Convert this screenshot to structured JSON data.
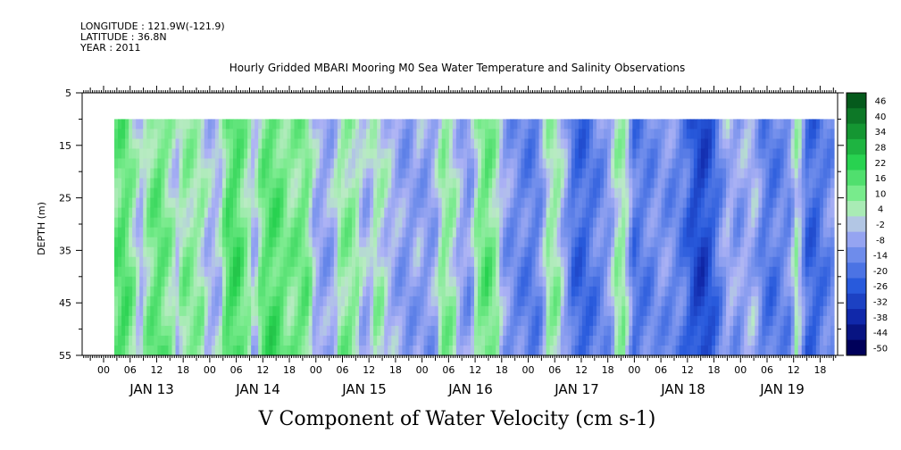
{
  "meta": {
    "longitude": "LONGITUDE : 121.9W(-121.9)",
    "latitude": "LATITUDE : 36.8N",
    "year": "YEAR : 2011"
  },
  "chart_data": {
    "type": "heatmap",
    "title": "Hourly Gridded MBARI Mooring M0 Sea Water Temperature and Salinity Observations",
    "subtitle": "V Component of Water Velocity (cm s-1)",
    "ylabel": "DEPTH (m)",
    "y_ticks": [
      "5",
      "15",
      "25",
      "35",
      "45",
      "55"
    ],
    "ylim": [
      5,
      55
    ],
    "y_inverted": true,
    "data_depth_range": [
      10,
      55
    ],
    "x_hour_ticks": [
      "00",
      "06",
      "12",
      "18",
      "00",
      "06",
      "12",
      "18",
      "00",
      "06",
      "12",
      "18",
      "00",
      "06",
      "12",
      "18",
      "00",
      "06",
      "12",
      "18",
      "00",
      "06",
      "12",
      "18",
      "00",
      "06",
      "12",
      "18",
      "00",
      "06",
      "12",
      "18"
    ],
    "x_day_labels": [
      "JAN 13",
      "JAN 14",
      "JAN 15",
      "JAN 16",
      "JAN 17",
      "JAN 18",
      "JAN 19"
    ],
    "colorbar": {
      "levels": [
        "46",
        "40",
        "34",
        "28",
        "22",
        "16",
        "10",
        "4",
        "-2",
        "-8",
        "-14",
        "-20",
        "-26",
        "-32",
        "-38",
        "-44",
        "-50"
      ],
      "vmin": -50,
      "vmax": 50
    },
    "pattern": {
      "description_free": true,
      "day_segments": [
        {
          "day": "JAN 13",
          "v": [
            10,
            14,
            4,
            -4,
            8,
            12,
            6,
            -2,
            6,
            4,
            2,
            -4
          ]
        },
        {
          "day": "JAN 14",
          "v": [
            -2,
            14,
            16,
            6,
            -4,
            10,
            14,
            12,
            6,
            8,
            10,
            -4
          ]
        },
        {
          "day": "JAN 15",
          "v": [
            -8,
            -6,
            4,
            6,
            2,
            -6,
            2,
            0,
            -4,
            -8,
            -10,
            -6
          ]
        },
        {
          "day": "JAN 16",
          "v": [
            -10,
            -6,
            6,
            2,
            -6,
            -10,
            6,
            12,
            4,
            -8,
            -12,
            -14
          ]
        },
        {
          "day": "JAN 17",
          "v": [
            -16,
            -14,
            2,
            4,
            -6,
            -20,
            -22,
            -18,
            -14,
            -10,
            2,
            4
          ]
        },
        {
          "day": "JAN 18",
          "v": [
            -18,
            -16,
            -14,
            -10,
            -12,
            -14,
            -18,
            -28,
            -30,
            -24,
            -14,
            -4
          ]
        },
        {
          "day": "JAN 19",
          "v": [
            -10,
            -6,
            -4,
            -16,
            -18,
            -14,
            -12,
            4,
            -20,
            -22,
            -16,
            -12
          ]
        }
      ]
    }
  }
}
